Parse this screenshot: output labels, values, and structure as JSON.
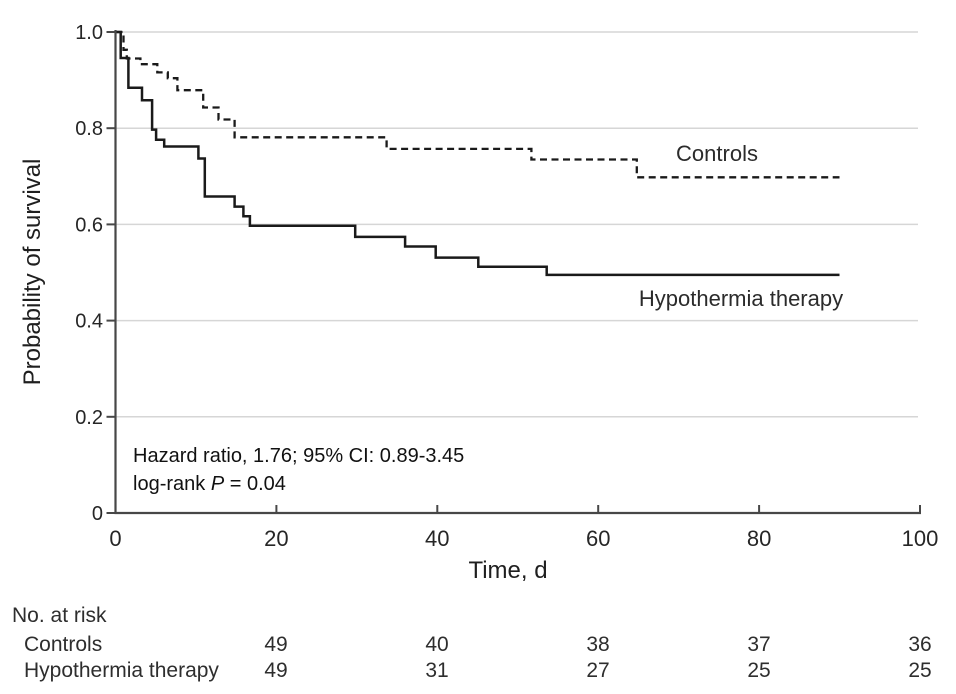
{
  "figure": {
    "background": "#ffffff",
    "text_color": "#1f1f1f",
    "axis_color": "#474747",
    "grid_color": "#d6d6d6",
    "curve_color": "#1a1a1a"
  },
  "chart_data": {
    "type": "line",
    "subtype": "kaplan-meier-step",
    "title": "",
    "xlabel": "Time, d",
    "ylabel": "Probability of survival",
    "xlim": [
      0,
      100
    ],
    "ylim": [
      0,
      1
    ],
    "xticks": [
      0,
      20,
      40,
      60,
      80,
      100
    ],
    "xtick_labels": [
      "0",
      "20",
      "40",
      "60",
      "80",
      "100"
    ],
    "yticks": [
      0,
      0.2,
      0.4,
      0.6,
      0.8,
      1.0
    ],
    "ytick_labels": [
      "0",
      "0.2",
      "0.4",
      "0.6",
      "0.8",
      "1.0"
    ],
    "grid": "horizontal-only",
    "legend_position": "inline-curve-labels",
    "series": [
      {
        "name": "Controls",
        "line_style": "dashed",
        "end_time": 90,
        "steps": [
          [
            0,
            1.0
          ],
          [
            1.0,
            0.963
          ],
          [
            1.4,
            0.945
          ],
          [
            3.1,
            0.933
          ],
          [
            5.2,
            0.916
          ],
          [
            6.5,
            0.904
          ],
          [
            7.7,
            0.879
          ],
          [
            10.9,
            0.843
          ],
          [
            12.8,
            0.818
          ],
          [
            14.8,
            0.781
          ],
          [
            33.7,
            0.757
          ],
          [
            51.7,
            0.735
          ],
          [
            64.8,
            0.698
          ]
        ]
      },
      {
        "name": "Hypothermia therapy",
        "line_style": "solid",
        "end_time": 90,
        "steps": [
          [
            0,
            1.0
          ],
          [
            0.65,
            0.946
          ],
          [
            1.6,
            0.884
          ],
          [
            3.3,
            0.858
          ],
          [
            4.55,
            0.797
          ],
          [
            5.05,
            0.776
          ],
          [
            6.05,
            0.762
          ],
          [
            10.3,
            0.737
          ],
          [
            11.1,
            0.658
          ],
          [
            14.8,
            0.637
          ],
          [
            15.9,
            0.617
          ],
          [
            16.7,
            0.597
          ],
          [
            29.8,
            0.574
          ],
          [
            36.0,
            0.554
          ],
          [
            39.8,
            0.531
          ],
          [
            45.1,
            0.512
          ],
          [
            53.6,
            0.495
          ]
        ]
      }
    ]
  },
  "series_labels": {
    "controls": "Controls",
    "hypothermia": "Hypothermia therapy"
  },
  "stats": {
    "line1": "Hazard ratio, 1.76; 95% CI: 0.89-3.45",
    "line2_prefix": "log-rank ",
    "line2_italic": "P",
    "line2_suffix": " = 0.04"
  },
  "at_risk": {
    "title": "No. at risk",
    "rows": [
      {
        "label": "Controls",
        "counts": [
          "49",
          "40",
          "38",
          "37",
          "36"
        ]
      },
      {
        "label": "Hypothermia therapy",
        "counts": [
          "49",
          "31",
          "27",
          "25",
          "25"
        ]
      }
    ]
  }
}
